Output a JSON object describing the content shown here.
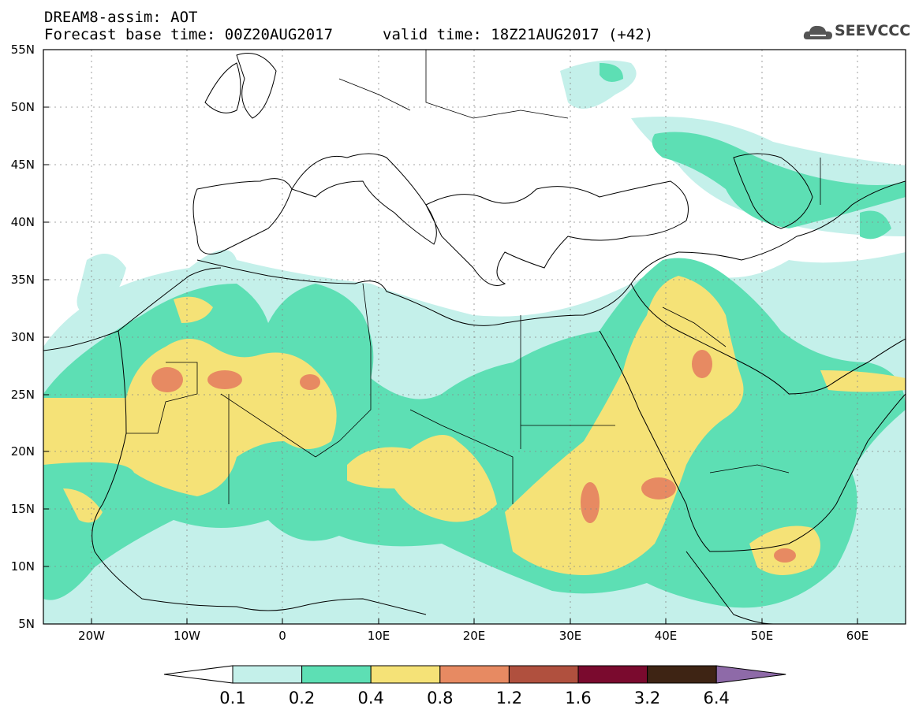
{
  "header": {
    "line1": "DREAM8-assim: AOT",
    "line2_left": "Forecast base time: 00Z20AUG2017",
    "line2_right": "valid time: 18Z21AUG2017 (+42)",
    "logo_text": "SEEVCCC"
  },
  "map": {
    "lat_labels": [
      "55N",
      "50N",
      "45N",
      "40N",
      "35N",
      "30N",
      "25N",
      "20N",
      "15N",
      "10N",
      "5N"
    ],
    "lon_labels": [
      "20W",
      "10W",
      "0",
      "10E",
      "20E",
      "30E",
      "40E",
      "50E",
      "60E"
    ],
    "lat_range": [
      5,
      55
    ],
    "lon_range": [
      -25,
      65
    ]
  },
  "colorbar": {
    "labels": [
      "0.1",
      "0.2",
      "0.4",
      "0.8",
      "1.2",
      "1.6",
      "3.2",
      "6.4"
    ],
    "colors": [
      "#c4f0ea",
      "#5ddfb4",
      "#f5e277",
      "#e78a62",
      "#b0503e",
      "#7a0a2e",
      "#3e2414",
      "#8e6aa8"
    ]
  }
}
